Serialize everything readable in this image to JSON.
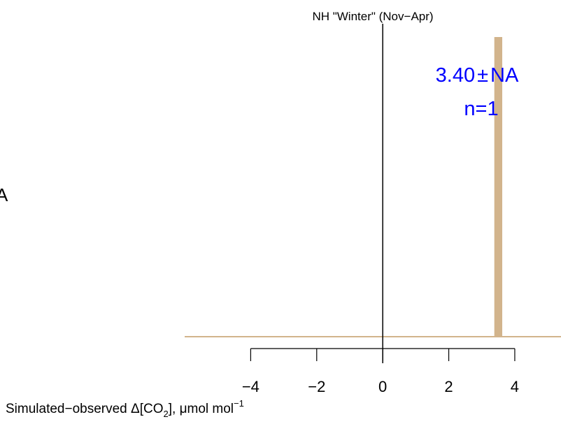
{
  "chart_data": {
    "type": "bar",
    "title": "NH \"Winter\" (Nov−Apr)",
    "xlabel": {
      "prefix": "Simulated−observed Δ[CO",
      "sub": "2",
      "middle": "], μmol mol",
      "sup": "−1"
    },
    "left_edge_text": "A",
    "xlim": [
      -6,
      5.4
    ],
    "x_ticks": [
      -4,
      -2,
      0,
      2,
      4
    ],
    "x_tick_labels": [
      "−4",
      "−2",
      "0",
      "2",
      "4"
    ],
    "ylim": [
      0,
      1
    ],
    "bars": [
      {
        "x": 3.5,
        "width": 0.24,
        "height": 1.0
      }
    ],
    "baseline_y": 0,
    "zero_line_x": 0,
    "annotation": {
      "mean": "3.40",
      "pm": "±",
      "sd": "NA",
      "count_text": "n=1"
    },
    "colors": {
      "bar": "#d2b48c",
      "baseline": "#d2b48c",
      "annotation": "#0000ff",
      "axis": "#000000",
      "text": "#000000"
    }
  }
}
